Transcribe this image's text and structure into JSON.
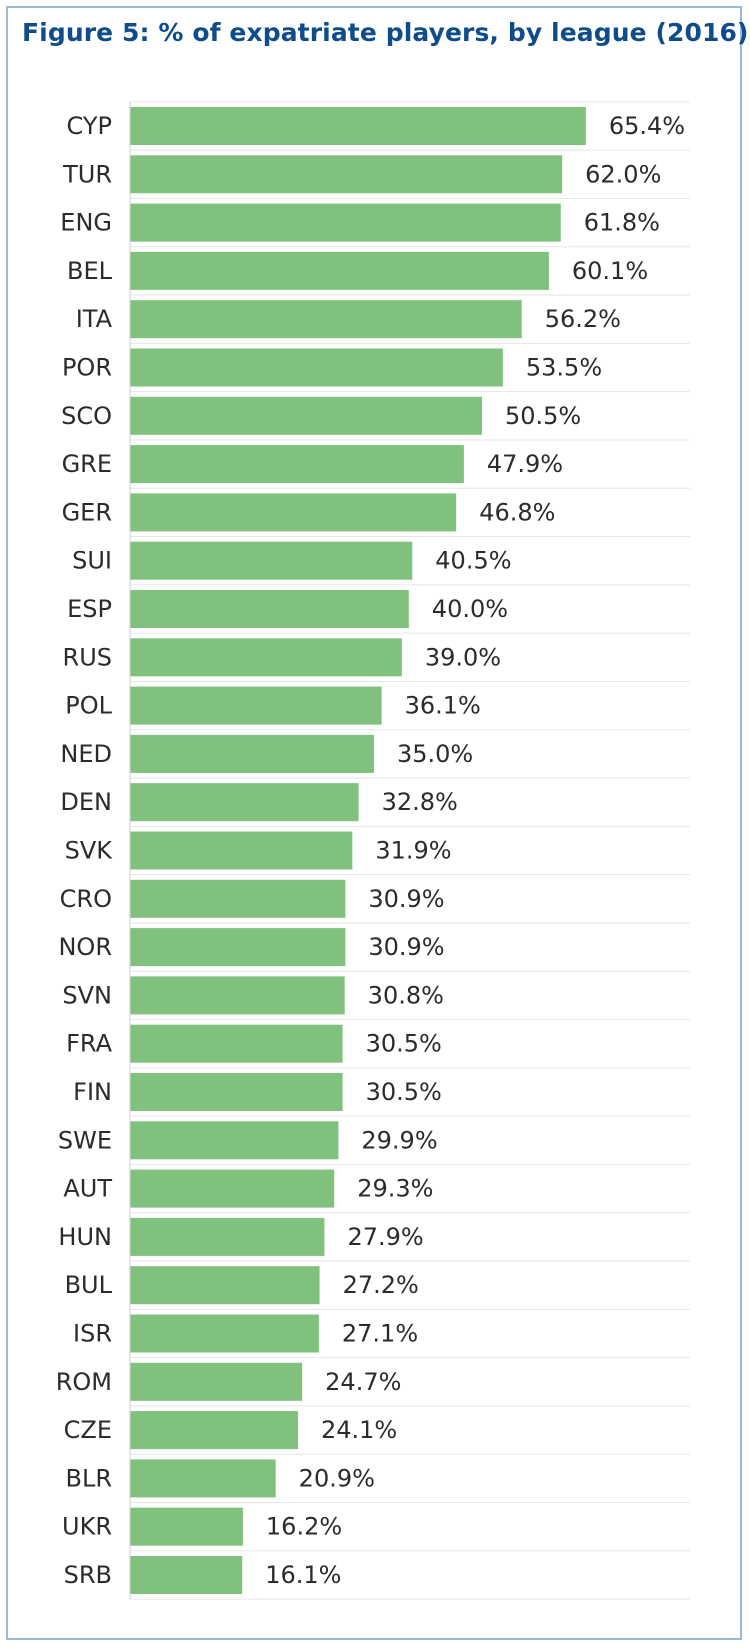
{
  "chart_data": {
    "type": "bar",
    "orientation": "horizontal",
    "title": "Figure 5: % of expatriate players, by league (2016)",
    "categories": [
      "CYP",
      "TUR",
      "ENG",
      "BEL",
      "ITA",
      "POR",
      "SCO",
      "GRE",
      "GER",
      "SUI",
      "ESP",
      "RUS",
      "POL",
      "NED",
      "DEN",
      "SVK",
      "CRO",
      "NOR",
      "SVN",
      "FRA",
      "FIN",
      "SWE",
      "AUT",
      "HUN",
      "BUL",
      "ISR",
      "ROM",
      "CZE",
      "BLR",
      "UKR",
      "SRB"
    ],
    "values": [
      65.4,
      62.0,
      61.8,
      60.1,
      56.2,
      53.5,
      50.5,
      47.9,
      46.8,
      40.5,
      40.0,
      39.0,
      36.1,
      35.0,
      32.8,
      31.9,
      30.9,
      30.9,
      30.8,
      30.5,
      30.5,
      29.9,
      29.3,
      27.9,
      27.2,
      27.1,
      24.7,
      24.1,
      20.9,
      16.2,
      16.1
    ],
    "value_labels": [
      "65.4%",
      "62.0%",
      "61.8%",
      "60.1%",
      "56.2%",
      "53.5%",
      "50.5%",
      "47.9%",
      "46.8%",
      "40.5%",
      "40.0%",
      "39.0%",
      "36.1%",
      "35.0%",
      "32.8%",
      "31.9%",
      "30.9%",
      "30.9%",
      "30.8%",
      "30.5%",
      "30.5%",
      "29.9%",
      "29.3%",
      "27.9%",
      "27.2%",
      "27.1%",
      "24.7%",
      "24.1%",
      "20.9%",
      "16.2%",
      "16.1%"
    ],
    "xlabel": "",
    "ylabel": "",
    "xlim": [
      0,
      100
    ],
    "grid": false,
    "legend": "none",
    "colors": {
      "bar": "#7fc17d",
      "title": "#0f4c8a",
      "frame": "#9bbad6"
    }
  }
}
